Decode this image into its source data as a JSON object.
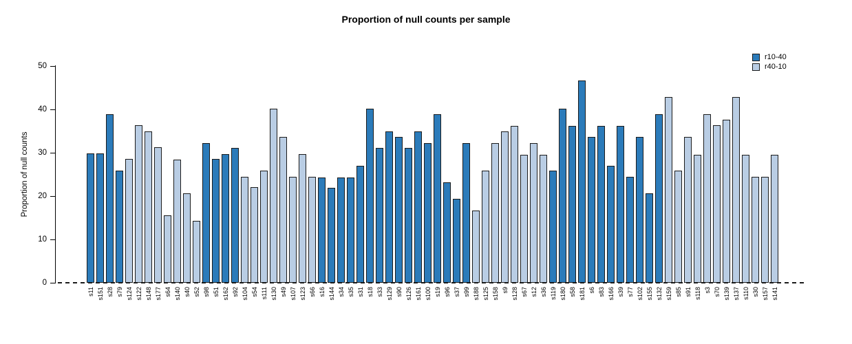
{
  "chart_data": {
    "type": "bar",
    "title": "Proportion of null counts per sample",
    "xlabel": "",
    "ylabel": "Proportion of null counts",
    "ylim": [
      0,
      50
    ],
    "yticks": [
      0,
      10,
      20,
      30,
      40,
      50
    ],
    "grid": false,
    "legend_position": "top-right",
    "zero_line_style": "dashed",
    "series": [
      {
        "name": "r10-40",
        "color": "#2b7bba"
      },
      {
        "name": "r40-10",
        "color": "#b9cde4"
      }
    ],
    "samples": [
      {
        "label": "s11",
        "value": 29.8,
        "series": "r10-40"
      },
      {
        "label": "s151",
        "value": 29.8,
        "series": "r10-40"
      },
      {
        "label": "s28",
        "value": 38.9,
        "series": "r10-40"
      },
      {
        "label": "s79",
        "value": 25.9,
        "series": "r10-40"
      },
      {
        "label": "s124",
        "value": 28.5,
        "series": "r40-10"
      },
      {
        "label": "s122",
        "value": 36.3,
        "series": "r40-10"
      },
      {
        "label": "s148",
        "value": 34.9,
        "series": "r40-10"
      },
      {
        "label": "s177",
        "value": 31.2,
        "series": "r40-10"
      },
      {
        "label": "s64",
        "value": 15.6,
        "series": "r40-10"
      },
      {
        "label": "s140",
        "value": 28.4,
        "series": "r40-10"
      },
      {
        "label": "s40",
        "value": 20.7,
        "series": "r40-10"
      },
      {
        "label": "s52",
        "value": 14.3,
        "series": "r40-10"
      },
      {
        "label": "s98",
        "value": 32.3,
        "series": "r10-40"
      },
      {
        "label": "s51",
        "value": 28.5,
        "series": "r10-40"
      },
      {
        "label": "s162",
        "value": 29.7,
        "series": "r10-40"
      },
      {
        "label": "s92",
        "value": 31.1,
        "series": "r10-40"
      },
      {
        "label": "s104",
        "value": 24.4,
        "series": "r40-10"
      },
      {
        "label": "s54",
        "value": 22,
        "series": "r40-10"
      },
      {
        "label": "s111",
        "value": 25.9,
        "series": "r40-10"
      },
      {
        "label": "s130",
        "value": 40.1,
        "series": "r40-10"
      },
      {
        "label": "s49",
        "value": 33.7,
        "series": "r40-10"
      },
      {
        "label": "s107",
        "value": 24.5,
        "series": "r40-10"
      },
      {
        "label": "s123",
        "value": 29.7,
        "series": "r40-10"
      },
      {
        "label": "s66",
        "value": 24.5,
        "series": "r40-10"
      },
      {
        "label": "s16",
        "value": 24.3,
        "series": "r10-40"
      },
      {
        "label": "s144",
        "value": 21.9,
        "series": "r10-40"
      },
      {
        "label": "s34",
        "value": 24.3,
        "series": "r10-40"
      },
      {
        "label": "s35",
        "value": 24.3,
        "series": "r10-40"
      },
      {
        "label": "s31",
        "value": 27,
        "series": "r10-40"
      },
      {
        "label": "s18",
        "value": 40.1,
        "series": "r10-40"
      },
      {
        "label": "s33",
        "value": 31.1,
        "series": "r10-40"
      },
      {
        "label": "s129",
        "value": 34.9,
        "series": "r10-40"
      },
      {
        "label": "s90",
        "value": 33.7,
        "series": "r10-40"
      },
      {
        "label": "s126",
        "value": 31.1,
        "series": "r10-40"
      },
      {
        "label": "s161",
        "value": 34.9,
        "series": "r10-40"
      },
      {
        "label": "s100",
        "value": 32.3,
        "series": "r10-40"
      },
      {
        "label": "s19",
        "value": 38.9,
        "series": "r10-40"
      },
      {
        "label": "s96",
        "value": 23.2,
        "series": "r10-40"
      },
      {
        "label": "s37",
        "value": 19.3,
        "series": "r10-40"
      },
      {
        "label": "s99",
        "value": 32.3,
        "series": "r10-40"
      },
      {
        "label": "s188",
        "value": 16.6,
        "series": "r40-10"
      },
      {
        "label": "s125",
        "value": 25.8,
        "series": "r40-10"
      },
      {
        "label": "s158",
        "value": 32.3,
        "series": "r40-10"
      },
      {
        "label": "s9",
        "value": 34.9,
        "series": "r40-10"
      },
      {
        "label": "s128",
        "value": 36.2,
        "series": "r40-10"
      },
      {
        "label": "s67",
        "value": 29.6,
        "series": "r40-10"
      },
      {
        "label": "s12",
        "value": 32.3,
        "series": "r40-10"
      },
      {
        "label": "s36",
        "value": 29.6,
        "series": "r40-10"
      },
      {
        "label": "s119",
        "value": 25.8,
        "series": "r10-40"
      },
      {
        "label": "s180",
        "value": 40.1,
        "series": "r10-40"
      },
      {
        "label": "s58",
        "value": 36.2,
        "series": "r10-40"
      },
      {
        "label": "s181",
        "value": 46.6,
        "series": "r10-40"
      },
      {
        "label": "s6",
        "value": 33.7,
        "series": "r10-40"
      },
      {
        "label": "s83",
        "value": 36.2,
        "series": "r10-40"
      },
      {
        "label": "s166",
        "value": 27,
        "series": "r10-40"
      },
      {
        "label": "s39",
        "value": 36.2,
        "series": "r10-40"
      },
      {
        "label": "s77",
        "value": 24.5,
        "series": "r10-40"
      },
      {
        "label": "s102",
        "value": 33.7,
        "series": "r10-40"
      },
      {
        "label": "s155",
        "value": 20.6,
        "series": "r10-40"
      },
      {
        "label": "s132",
        "value": 38.9,
        "series": "r10-40"
      },
      {
        "label": "s159",
        "value": 42.8,
        "series": "r40-10"
      },
      {
        "label": "s85",
        "value": 25.8,
        "series": "r40-10"
      },
      {
        "label": "s91",
        "value": 33.7,
        "series": "r40-10"
      },
      {
        "label": "s118",
        "value": 29.6,
        "series": "r40-10"
      },
      {
        "label": "s3",
        "value": 38.9,
        "series": "r40-10"
      },
      {
        "label": "s70",
        "value": 36.3,
        "series": "r40-10"
      },
      {
        "label": "s139",
        "value": 37.6,
        "series": "r40-10"
      },
      {
        "label": "s137",
        "value": 42.8,
        "series": "r40-10"
      },
      {
        "label": "s110",
        "value": 29.6,
        "series": "r40-10"
      },
      {
        "label": "s30",
        "value": 24.5,
        "series": "r40-10"
      },
      {
        "label": "s157",
        "value": 24.5,
        "series": "r40-10"
      },
      {
        "label": "s141",
        "value": 29.6,
        "series": "r40-10"
      }
    ]
  }
}
